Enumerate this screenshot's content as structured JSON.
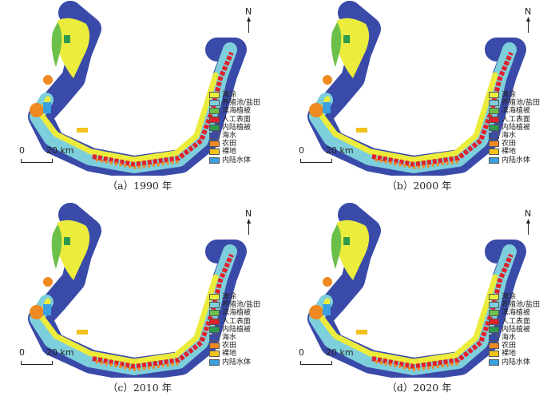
{
  "panels": [
    {
      "caption": "（a）1990 年"
    },
    {
      "caption": "（b）2000 年"
    },
    {
      "caption": "（c）2010 年"
    },
    {
      "caption": "（d）2020 年"
    }
  ],
  "legend": [
    {
      "label": "滩涂",
      "color": "#ecec3c"
    },
    {
      "label": "养殖池/盐田",
      "color": "#7ecfdc"
    },
    {
      "label": "滨海植被",
      "color": "#6cc04a"
    },
    {
      "label": "人工表面",
      "color": "#e0202a"
    },
    {
      "label": "内陆植被",
      "color": "#2e9a4e"
    },
    {
      "label": "海水",
      "color": "#3a4aa8"
    },
    {
      "label": "农田",
      "color": "#ef8a22"
    },
    {
      "label": "裸地",
      "color": "#f2c21c"
    },
    {
      "label": "内陆水体",
      "color": "#3aa0e0"
    }
  ],
  "scale": {
    "zero": "0",
    "distance": "20 km"
  },
  "north_label": "N"
}
